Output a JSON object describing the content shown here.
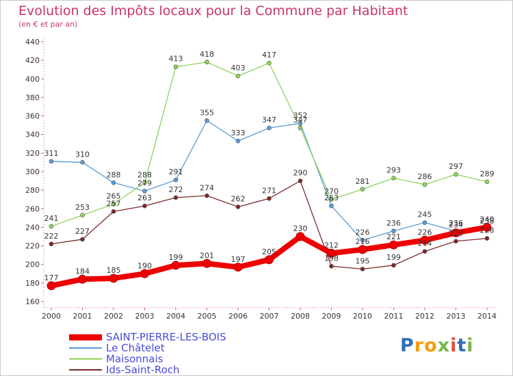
{
  "chart_data": {
    "type": "line",
    "title": "Evolution des Impôts locaux pour la Commune par Habitant",
    "subtitle": "(en € et par an)",
    "x": [
      "2000",
      "2001",
      "2002",
      "2003",
      "2004",
      "2005",
      "2006",
      "2007",
      "2008",
      "2009",
      "2010",
      "2011",
      "2012",
      "2013",
      "2014"
    ],
    "ylim": [
      160,
      440
    ],
    "yticks": [
      160,
      180,
      200,
      220,
      240,
      260,
      280,
      300,
      320,
      340,
      360,
      380,
      400,
      420,
      440
    ],
    "grid": false,
    "legend_position": "bottom-left",
    "series": [
      {
        "name": "SAINT-PIERRE-LES-BOIS",
        "color": "#ee0000",
        "style": "thick",
        "values": [
          177,
          184,
          185,
          190,
          199,
          201,
          197,
          205,
          230,
          212,
          216,
          221,
          226,
          234,
          240
        ]
      },
      {
        "name": "Le Châtelet",
        "color": "#5b9bd5",
        "style": "thin",
        "values": [
          311,
          310,
          288,
          279,
          291,
          355,
          333,
          347,
          352,
          263,
          226,
          236,
          245,
          236,
          238
        ]
      },
      {
        "name": "Maisonnais",
        "color": "#8fd45a",
        "style": "thin",
        "values": [
          241,
          253,
          265,
          288,
          413,
          418,
          403,
          417,
          347,
          270,
          281,
          293,
          286,
          297,
          289
        ]
      },
      {
        "name": "Ids-Saint-Roch",
        "color": "#7a2a2a",
        "style": "thin",
        "values": [
          222,
          227,
          257,
          263,
          272,
          274,
          262,
          271,
          290,
          198,
          195,
          199,
          214,
          225,
          228
        ]
      }
    ]
  },
  "logo": {
    "letters": [
      {
        "char": "P",
        "color": "#2f6fb5"
      },
      {
        "char": "r",
        "color": "#f39c12"
      },
      {
        "char": "o",
        "color": "#f39c12"
      },
      {
        "char": "x",
        "color": "#7ab648"
      },
      {
        "char": "i",
        "color": "#e74c3c"
      },
      {
        "char": "t",
        "color": "#2f6fb5"
      },
      {
        "char": "i",
        "color": "#7ab648"
      }
    ]
  }
}
